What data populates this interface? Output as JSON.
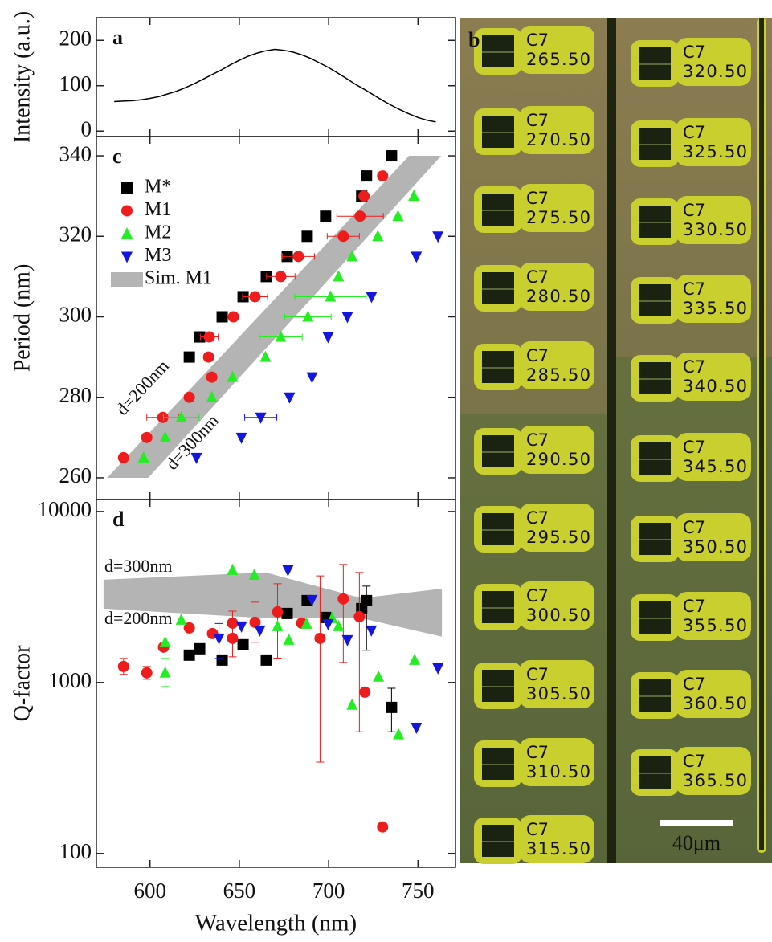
{
  "chart_data": [
    {
      "type": "line",
      "panel_label": "a",
      "ylabel": "Intensity (a.u.)",
      "x": [
        580,
        585,
        590,
        595,
        600,
        605,
        610,
        615,
        620,
        625,
        630,
        635,
        640,
        645,
        650,
        655,
        660,
        665,
        670,
        675,
        680,
        685,
        690,
        695,
        700,
        705,
        710,
        715,
        720,
        725,
        730,
        735,
        740,
        745,
        750,
        755,
        760
      ],
      "values": [
        65,
        66,
        67,
        69,
        72,
        76,
        82,
        88,
        96,
        105,
        115,
        125,
        135,
        146,
        156,
        165,
        172,
        177,
        180,
        178,
        174,
        168,
        160,
        150,
        140,
        128,
        116,
        103,
        92,
        80,
        68,
        57,
        47,
        38,
        30,
        24,
        20
      ],
      "color": "#000000",
      "xlim": [
        570,
        771
      ],
      "xticks": [
        600,
        650,
        700,
        750
      ],
      "ylim": [
        -12,
        250
      ],
      "yticks": [
        0,
        100,
        200
      ]
    },
    {
      "type": "scatter",
      "panel_label": "c",
      "ylabel": "Period (nm)",
      "legend": "upper left",
      "xlim": [
        570,
        771
      ],
      "xticks": [
        600,
        650,
        700,
        750
      ],
      "ylim": [
        254.6,
        344.8
      ],
      "yticks": [
        260,
        280,
        300,
        320,
        340
      ],
      "band": {
        "name": "Sim. M1",
        "color": "#b4b4b4",
        "values": [
          260,
          340
        ],
        "x_low": [
          576,
          745
        ],
        "x_high": [
          599,
          763
        ]
      },
      "series": [
        {
          "name": "M*",
          "color": "#000000",
          "marker": "square",
          "x": [
            622.0,
            627.8,
            640.4,
            652.1,
            665.1,
            676.8,
            688.0,
            698.3,
            718.5,
            721.2,
            735.2
          ],
          "values": [
            290,
            295,
            300,
            305,
            310,
            315,
            320,
            325,
            330,
            335,
            340
          ]
        },
        {
          "name": "M1",
          "color": "#ee1c1c",
          "marker": "circle",
          "x": [
            585.2,
            598.2,
            607.2,
            622.0,
            634.6,
            632.8,
            633.2,
            646.7,
            658.8,
            673.2,
            683.1,
            708.2,
            717.6,
            719.8,
            730.2
          ],
          "values": [
            265,
            270,
            275,
            280,
            285,
            290,
            295,
            300,
            305,
            310,
            315,
            320,
            325,
            330,
            335
          ],
          "xerr": [
            null,
            null,
            9,
            null,
            null,
            null,
            5,
            null,
            7,
            8,
            9,
            9,
            13,
            null,
            null
          ]
        },
        {
          "name": "M2",
          "color": "#22ee22",
          "marker": "triangle-up",
          "x": [
            596.4,
            608.5,
            617.5,
            634.6,
            646.2,
            664.6,
            673.2,
            688.4,
            701.0,
            705.5,
            713.1,
            727.5,
            738.8,
            747.7
          ],
          "values": [
            265,
            270,
            275,
            280,
            285,
            290,
            295,
            300,
            305,
            310,
            315,
            320,
            325,
            330
          ],
          "xerr": [
            null,
            null,
            10,
            null,
            null,
            null,
            12,
            13,
            20,
            null,
            null,
            null,
            null,
            null
          ]
        },
        {
          "name": "M3",
          "color": "#1515e0",
          "marker": "triangle-down",
          "x": [
            626.0,
            651.2,
            662.0,
            678.1,
            690.7,
            699.7,
            710.5,
            724.0,
            749.1,
            761.2
          ],
          "values": [
            265,
            270,
            275,
            280,
            285,
            295,
            300,
            305,
            315,
            320
          ],
          "xerr": [
            null,
            null,
            9,
            null,
            null,
            null,
            null,
            null,
            null,
            null
          ]
        }
      ],
      "annotations": [
        "d=200nm",
        "d=300nm"
      ]
    },
    {
      "type": "scatter",
      "panel_label": "d",
      "ylabel": "Q-factor",
      "xlabel": "Wavelength (nm)",
      "log_y": true,
      "xlim": [
        570,
        771
      ],
      "xticks": [
        600,
        650,
        700,
        750
      ],
      "ylim": [
        83,
        11750
      ],
      "yticks": [
        100,
        1000,
        10000
      ],
      "band": {
        "color": "#b4b4b4",
        "x": [
          574,
          664.7,
          718.5,
          763.4
        ],
        "high": [
          3990,
          4400,
          3110,
          3540
        ],
        "low": [
          2704,
          2375,
          2375,
          1853
        ]
      },
      "series": [
        {
          "name": "M*",
          "color": "#000000",
          "marker": "square",
          "x": [
            622.0,
            627.8,
            640.4,
            652.1,
            665.1,
            676.8,
            688.0,
            698.3,
            718.5,
            721.2,
            735.2
          ],
          "values": [
            1445,
            1575,
            1353,
            1663,
            1353,
            2533,
            3012,
            2400,
            2704,
            3012,
            715
          ],
          "err_minus": [
            null,
            null,
            null,
            null,
            null,
            null,
            null,
            null,
            null,
            1470,
            200
          ],
          "err_plus": [
            null,
            null,
            null,
            null,
            null,
            null,
            null,
            null,
            null,
            645,
            210
          ]
        },
        {
          "name": "M1",
          "color": "#ee1c1c",
          "marker": "circle",
          "x": [
            585.2,
            598.2,
            607.6,
            622.0,
            635.0,
            646.2,
            646.2,
            658.8,
            671.4,
            684.9,
            695.2,
            708.2,
            717.2,
            720.3,
            730.2
          ],
          "values": [
            1241,
            1139,
            1609,
            2085,
            1933,
            2224,
            1812,
            2248,
            2588,
            2224,
            1812,
            3080,
            2425,
            878,
            143
          ],
          "err_minus": [
            126,
            95,
            null,
            null,
            null,
            null,
            400,
            530,
            1200,
            null,
            1470,
            1770,
            1910,
            null,
            null
          ],
          "err_plus": [
            141,
            102,
            null,
            null,
            null,
            null,
            800,
            700,
            1190,
            null,
            2390,
            1820,
            1975,
            null,
            null
          ]
        },
        {
          "name": "M2",
          "color": "#22ee22",
          "marker": "triangle-up",
          "x": [
            608.5,
            608.5,
            617.5,
            646.2,
            658.4,
            671.4,
            677.7,
            687.6,
            702.0,
            705.5,
            713.1,
            727.9,
            739.1,
            748.1
          ],
          "values": [
            1717,
            1139,
            2323,
            4542,
            4252,
            2130,
            1773,
            2200,
            2375,
            2130,
            739,
            1079,
            496,
            1353
          ],
          "err_minus": [
            null,
            192,
            null,
            null,
            null,
            null,
            null,
            null,
            null,
            null,
            null,
            null,
            null,
            null
          ],
          "err_plus": [
            null,
            243,
            null,
            null,
            null,
            null,
            null,
            null,
            null,
            null,
            null,
            null,
            null,
            null
          ]
        },
        {
          "name": "M3",
          "color": "#1515e0",
          "marker": "triangle-down",
          "x": [
            638.6,
            651.2,
            661.5,
            677.2,
            690.7,
            699.7,
            710.5,
            723.9,
            749.1,
            761.2
          ],
          "values": [
            1812,
            2130,
            2020,
            4542,
            3045,
            2200,
            1773,
            2020,
            545,
            1215
          ],
          "err_minus": [
            430,
            null,
            null,
            null,
            null,
            null,
            null,
            null,
            null,
            null
          ],
          "err_plus": [
            400,
            null,
            null,
            null,
            null,
            null,
            null,
            null,
            null,
            null
          ]
        }
      ],
      "annotations": [
        "d=300nm",
        "d=200nm"
      ]
    }
  ],
  "image_panel": {
    "panel_label": "b",
    "scale_bar": "40μm",
    "chips": [
      {
        "name": "C7",
        "value": "265.50"
      },
      {
        "name": "C7",
        "value": "270.50"
      },
      {
        "name": "C7",
        "value": "275.50"
      },
      {
        "name": "C7",
        "value": "280.50"
      },
      {
        "name": "C7",
        "value": "285.50"
      },
      {
        "name": "C7",
        "value": "290.50"
      },
      {
        "name": "C7",
        "value": "295.50"
      },
      {
        "name": "C7",
        "value": "300.50"
      },
      {
        "name": "C7",
        "value": "305.50"
      },
      {
        "name": "C7",
        "value": "310.50"
      },
      {
        "name": "C7",
        "value": "315.50"
      },
      {
        "name": "C7",
        "value": "320.50"
      },
      {
        "name": "C7",
        "value": "325.50"
      },
      {
        "name": "C7",
        "value": "330.50"
      },
      {
        "name": "C7",
        "value": "335.50"
      },
      {
        "name": "C7",
        "value": "340.50"
      },
      {
        "name": "C7",
        "value": "345.50"
      },
      {
        "name": "C7",
        "value": "350.50"
      },
      {
        "name": "C7",
        "value": "355.50"
      },
      {
        "name": "C7",
        "value": "360.50"
      },
      {
        "name": "C7",
        "value": "365.50"
      }
    ]
  }
}
